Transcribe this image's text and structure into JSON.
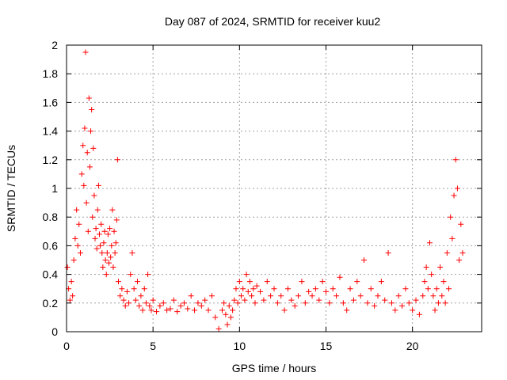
{
  "chart_data": {
    "type": "scatter",
    "title": "Day 087 of 2024, SRMTID for receiver kuu2",
    "xlabel": "GPS time / hours",
    "ylabel": "SRMTID / TECUs",
    "xlim": [
      0,
      24
    ],
    "ylim": [
      0,
      2
    ],
    "xticks": [
      0,
      5,
      10,
      15,
      20
    ],
    "xtick_labels": [
      "0",
      "5",
      "10",
      "15",
      "20"
    ],
    "yticks": [
      0,
      0.2,
      0.4,
      0.6,
      0.8,
      1,
      1.2,
      1.4,
      1.6,
      1.8,
      2
    ],
    "ytick_labels": [
      "0",
      "0.2",
      "0.4",
      "0.6",
      "0.8",
      "1",
      "1.2",
      "1.4",
      "1.6",
      "1.8",
      "2"
    ],
    "grid": true,
    "marker": "+",
    "color": "#ff0000",
    "series": [
      {
        "name": "SRMTID",
        "x": [
          0.05,
          0.12,
          0.2,
          0.28,
          0.35,
          0.42,
          0.5,
          0.58,
          0.65,
          0.72,
          0.8,
          0.88,
          0.95,
          1.0,
          1.05,
          1.1,
          1.15,
          1.2,
          1.25,
          1.3,
          1.35,
          1.4,
          1.45,
          1.5,
          1.55,
          1.6,
          1.65,
          1.7,
          1.75,
          1.8,
          1.85,
          1.9,
          1.95,
          2.0,
          2.05,
          2.1,
          2.15,
          2.2,
          2.25,
          2.3,
          2.35,
          2.4,
          2.45,
          2.5,
          2.55,
          2.6,
          2.65,
          2.7,
          2.75,
          2.8,
          2.85,
          2.9,
          2.95,
          3.0,
          3.1,
          3.2,
          3.3,
          3.4,
          3.5,
          3.6,
          3.7,
          3.8,
          3.9,
          4.0,
          4.1,
          4.2,
          4.3,
          4.4,
          4.5,
          4.6,
          4.7,
          4.8,
          4.9,
          5.0,
          5.2,
          5.4,
          5.6,
          5.8,
          6.0,
          6.2,
          6.4,
          6.6,
          6.8,
          7.0,
          7.2,
          7.4,
          7.6,
          7.8,
          8.0,
          8.2,
          8.4,
          8.6,
          8.8,
          9.0,
          9.1,
          9.2,
          9.3,
          9.4,
          9.5,
          9.6,
          9.7,
          9.8,
          9.9,
          10.0,
          10.1,
          10.2,
          10.3,
          10.4,
          10.5,
          10.6,
          10.7,
          10.8,
          10.9,
          11.0,
          11.2,
          11.4,
          11.6,
          11.8,
          12.0,
          12.2,
          12.4,
          12.6,
          12.8,
          13.0,
          13.2,
          13.4,
          13.6,
          13.8,
          14.0,
          14.2,
          14.4,
          14.6,
          14.8,
          15.0,
          15.2,
          15.4,
          15.6,
          15.8,
          16.0,
          16.2,
          16.4,
          16.6,
          16.8,
          17.0,
          17.2,
          17.4,
          17.6,
          17.8,
          18.0,
          18.2,
          18.4,
          18.6,
          18.8,
          19.0,
          19.2,
          19.4,
          19.6,
          19.8,
          20.0,
          20.2,
          20.4,
          20.6,
          20.7,
          20.8,
          20.9,
          21.0,
          21.1,
          21.2,
          21.3,
          21.4,
          21.5,
          21.6,
          21.7,
          21.8,
          21.9,
          22.0,
          22.1,
          22.2,
          22.3,
          22.4,
          22.5,
          22.6,
          22.7,
          22.8,
          22.9
        ],
        "y": [
          0.45,
          0.3,
          0.22,
          0.35,
          0.25,
          0.5,
          0.65,
          0.85,
          0.6,
          0.75,
          0.55,
          1.1,
          1.3,
          1.02,
          1.42,
          1.95,
          0.9,
          1.25,
          0.7,
          1.63,
          1.15,
          1.4,
          1.55,
          0.8,
          1.28,
          0.95,
          0.65,
          0.72,
          0.58,
          0.85,
          1.02,
          0.68,
          0.6,
          0.75,
          0.55,
          0.45,
          0.62,
          0.7,
          0.5,
          0.4,
          0.55,
          0.68,
          0.48,
          0.72,
          0.52,
          0.6,
          0.85,
          0.45,
          0.7,
          0.55,
          0.62,
          0.78,
          1.2,
          0.35,
          0.25,
          0.3,
          0.22,
          0.18,
          0.28,
          0.2,
          0.4,
          0.55,
          0.3,
          0.22,
          0.35,
          0.18,
          0.25,
          0.15,
          0.3,
          0.2,
          0.4,
          0.18,
          0.15,
          0.22,
          0.14,
          0.18,
          0.2,
          0.15,
          0.16,
          0.22,
          0.14,
          0.18,
          0.2,
          0.16,
          0.25,
          0.15,
          0.2,
          0.18,
          0.22,
          0.15,
          0.25,
          0.1,
          0.02,
          0.15,
          0.2,
          0.12,
          0.05,
          0.18,
          0.1,
          0.15,
          0.22,
          0.3,
          0.2,
          0.35,
          0.25,
          0.3,
          0.22,
          0.4,
          0.28,
          0.35,
          0.25,
          0.3,
          0.2,
          0.32,
          0.28,
          0.22,
          0.35,
          0.25,
          0.3,
          0.2,
          0.25,
          0.15,
          0.3,
          0.22,
          0.18,
          0.25,
          0.35,
          0.2,
          0.28,
          0.25,
          0.3,
          0.22,
          0.35,
          0.28,
          0.2,
          0.3,
          0.25,
          0.38,
          0.2,
          0.15,
          0.3,
          0.22,
          0.35,
          0.25,
          0.5,
          0.2,
          0.3,
          0.18,
          0.25,
          0.35,
          0.22,
          0.55,
          0.2,
          0.15,
          0.25,
          0.18,
          0.3,
          0.2,
          0.15,
          0.22,
          0.12,
          0.25,
          0.35,
          0.45,
          0.3,
          0.62,
          0.4,
          0.25,
          0.15,
          0.3,
          0.2,
          0.45,
          0.25,
          0.35,
          0.2,
          0.55,
          0.3,
          0.8,
          0.65,
          0.95,
          1.2,
          1.0,
          0.5,
          0.75,
          0.55
        ]
      }
    ]
  }
}
